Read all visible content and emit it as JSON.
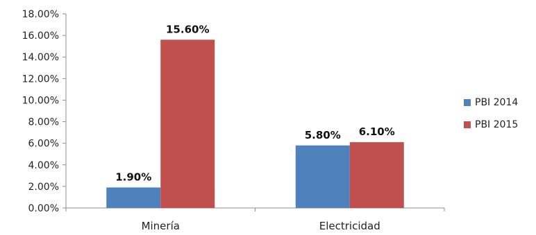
{
  "chart_data": {
    "type": "bar",
    "categories": [
      "Minería",
      "Electricidad"
    ],
    "series": [
      {
        "name": "PBI 2014",
        "color": "#4F81BD",
        "values": [
          1.9,
          5.8
        ],
        "labels": [
          "1.90%",
          "5.80%"
        ]
      },
      {
        "name": "PBI 2015",
        "color": "#C0504D",
        "values": [
          15.6,
          6.1
        ],
        "labels": [
          "15.60%",
          "6.10%"
        ]
      }
    ],
    "y_ticks": [
      "0.00%",
      "2.00%",
      "4.00%",
      "6.00%",
      "8.00%",
      "10.00%",
      "12.00%",
      "14.00%",
      "16.00%",
      "18.00%"
    ],
    "ylim": [
      0,
      18
    ],
    "grid": false,
    "legend_position": "right"
  }
}
